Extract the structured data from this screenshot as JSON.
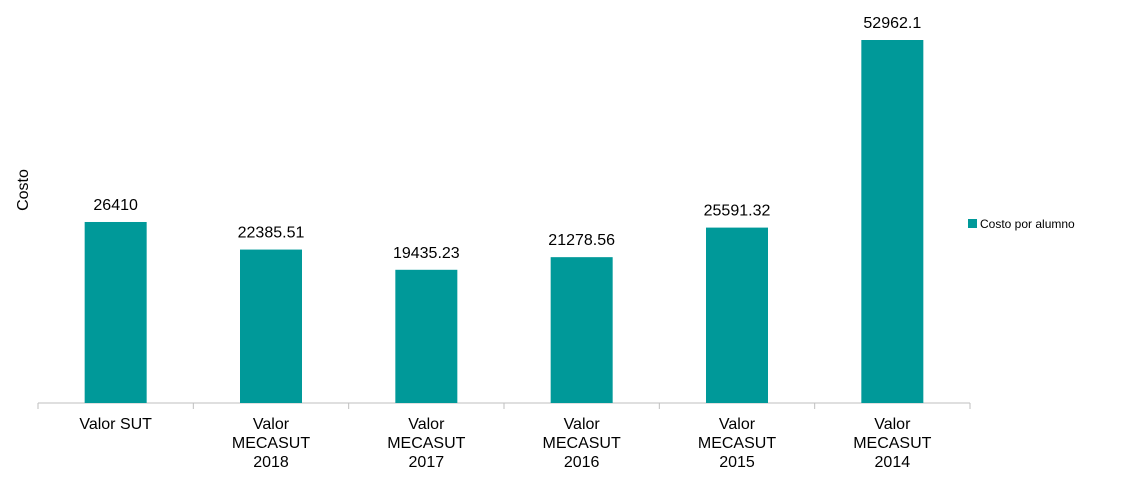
{
  "chart_data": {
    "type": "bar",
    "y_label": "Costo",
    "categories": [
      "Valor SUT",
      "Valor MECASUT 2018",
      "Valor MECASUT 2017",
      "Valor MECASUT 2016",
      "Valor MECASUT 2015",
      "Valor MECASUT 2014"
    ],
    "series": [
      {
        "name": "Costo por alumno",
        "color": "#009999",
        "values": [
          26410,
          22385.51,
          19435.23,
          21278.56,
          25591.32,
          52962.1
        ]
      }
    ],
    "legend": "right"
  }
}
